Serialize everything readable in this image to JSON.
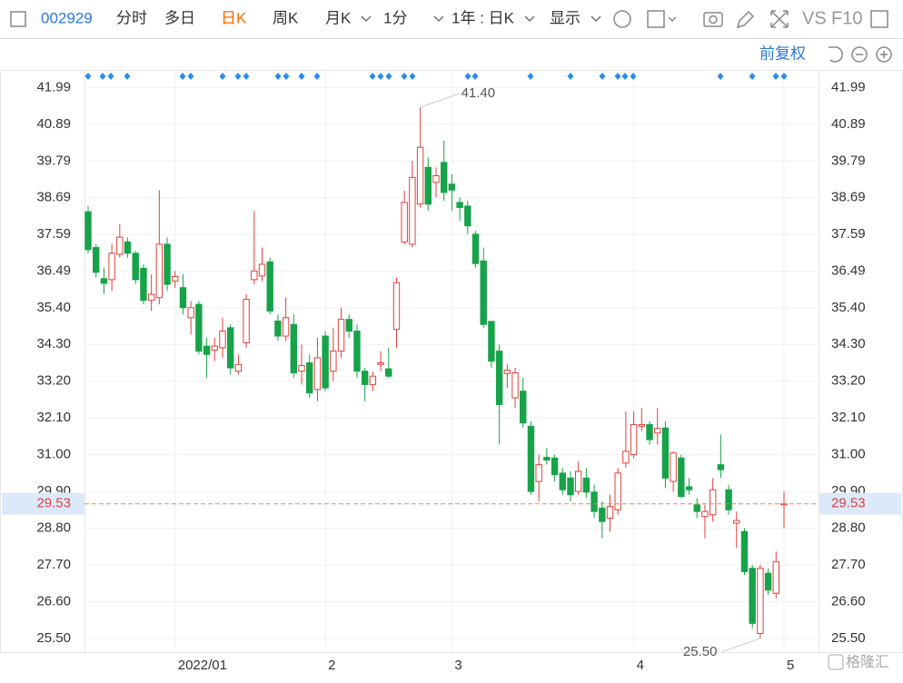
{
  "toolbar": {
    "code": "002929",
    "tabs": [
      "分时",
      "多日",
      "日K",
      "周K",
      "月K",
      "1分",
      "1年 : 日K",
      "显示"
    ],
    "active_tab": 2,
    "tools": [
      "VS",
      "F10"
    ],
    "adjust": "前复权",
    "watermark": "格隆汇"
  },
  "chart_data": {
    "type": "candlestick",
    "categories": [
      null,
      null,
      null,
      null,
      null,
      null,
      null,
      null,
      null,
      null,
      null,
      "2022/01",
      null,
      null,
      null,
      null,
      null,
      null,
      null,
      null,
      null,
      null,
      null,
      null,
      null,
      null,
      null,
      null,
      null,
      null,
      "2",
      null,
      null,
      null,
      null,
      null,
      null,
      null,
      null,
      null,
      null,
      null,
      null,
      null,
      null,
      null,
      "3",
      null,
      null,
      null,
      null,
      null,
      null,
      null,
      null,
      null,
      null,
      null,
      null,
      null,
      null,
      null,
      null,
      null,
      null,
      null,
      null,
      null,
      null,
      "4",
      null,
      null,
      null,
      null,
      null,
      null,
      null,
      null,
      null,
      null,
      null,
      null,
      null,
      null,
      null,
      null,
      null,
      null,
      "5"
    ],
    "open": [
      38.27,
      37.2,
      36.27,
      36.24,
      37.0,
      37.37,
      37.03,
      36.58,
      35.62,
      35.7,
      37.3,
      36.2,
      36.0,
      35.1,
      35.5,
      34.25,
      34.13,
      34.2,
      34.8,
      33.5,
      34.35,
      36.24,
      36.35,
      36.77,
      35.0,
      34.55,
      34.9,
      33.5,
      33.75,
      32.95,
      34.55,
      33.5,
      34.1,
      35.05,
      34.7,
      33.5,
      33.1,
      33.7,
      33.57,
      34.75,
      37.37,
      37.3,
      38.5,
      39.6,
      39.15,
      39.75,
      39.1,
      38.55,
      38.44,
      37.6,
      36.8,
      34.99,
      34.1,
      33.43,
      32.7,
      32.9,
      31.85,
      30.2,
      30.92,
      30.9,
      30.45,
      30.3,
      29.9,
      30.3,
      29.88,
      29.4,
      29.1,
      29.35,
      30.75,
      31.0,
      31.85,
      31.9,
      31.65,
      31.8,
      30.2,
      30.9,
      30.04,
      29.5,
      29.15,
      29.2,
      30.7,
      29.95,
      28.95,
      28.7,
      27.6,
      25.65,
      27.45,
      26.85,
      29.5
    ],
    "high": [
      38.44,
      37.3,
      36.6,
      37.3,
      37.9,
      37.5,
      37.1,
      36.7,
      36.4,
      38.92,
      37.5,
      36.5,
      36.4,
      35.6,
      35.6,
      34.5,
      34.5,
      35.1,
      34.9,
      34.0,
      35.8,
      38.3,
      37.2,
      36.9,
      35.2,
      35.7,
      35.2,
      34.3,
      34.0,
      34.5,
      34.7,
      34.8,
      35.4,
      35.2,
      34.9,
      33.6,
      33.5,
      34.1,
      34.2,
      36.3,
      38.9,
      39.8,
      41.4,
      39.9,
      39.6,
      40.4,
      39.4,
      38.7,
      38.6,
      37.7,
      37.2,
      35.0,
      34.3,
      33.7,
      33.6,
      33.3,
      32.0,
      31.0,
      31.2,
      31.0,
      30.6,
      30.5,
      30.8,
      30.6,
      30.1,
      29.6,
      29.8,
      30.6,
      32.3,
      32.3,
      32.4,
      32.0,
      32.4,
      32.0,
      31.1,
      31.0,
      30.3,
      29.7,
      29.5,
      30.3,
      31.6,
      30.1,
      29.3,
      28.8,
      27.7,
      27.7,
      27.6,
      28.1,
      29.9
    ],
    "low": [
      37.03,
      36.3,
      35.8,
      35.9,
      36.9,
      36.9,
      36.1,
      35.5,
      35.3,
      35.5,
      35.9,
      36.0,
      35.2,
      34.6,
      34.0,
      33.3,
      33.8,
      33.9,
      33.4,
      33.4,
      34.2,
      36.1,
      36.2,
      35.2,
      34.4,
      34.4,
      33.3,
      33.1,
      32.7,
      32.6,
      32.9,
      33.2,
      33.9,
      34.5,
      33.3,
      32.6,
      32.9,
      33.5,
      33.3,
      34.2,
      37.3,
      37.2,
      38.4,
      38.3,
      38.7,
      38.6,
      38.3,
      38.0,
      37.6,
      36.6,
      34.8,
      33.6,
      31.3,
      33.0,
      32.4,
      31.8,
      29.8,
      29.6,
      30.7,
      30.2,
      29.8,
      29.6,
      29.8,
      29.7,
      29.1,
      28.5,
      28.7,
      29.2,
      30.6,
      30.9,
      31.7,
      31.3,
      31.3,
      30.0,
      29.9,
      29.7,
      29.8,
      29.1,
      28.5,
      29.0,
      30.3,
      29.2,
      28.2,
      27.4,
      25.8,
      25.5,
      26.8,
      26.7,
      28.8
    ],
    "close": [
      37.14,
      36.46,
      36.13,
      37.03,
      37.51,
      37.03,
      36.24,
      35.62,
      35.8,
      37.3,
      36.1,
      36.33,
      35.4,
      35.4,
      34.1,
      34.0,
      34.25,
      34.7,
      33.6,
      33.7,
      35.65,
      36.5,
      36.7,
      35.3,
      34.55,
      35.1,
      33.45,
      33.67,
      32.85,
      33.9,
      33.0,
      34.1,
      35.05,
      34.7,
      33.5,
      33.1,
      33.35,
      33.75,
      33.35,
      36.15,
      38.55,
      39.3,
      40.2,
      38.5,
      39.35,
      38.85,
      38.92,
      38.4,
      37.85,
      36.72,
      34.9,
      33.8,
      32.5,
      33.53,
      33.45,
      31.95,
      29.9,
      30.7,
      30.84,
      30.4,
      29.95,
      29.8,
      30.5,
      29.88,
      29.3,
      29.0,
      29.45,
      30.45,
      31.1,
      31.9,
      31.9,
      31.45,
      31.79,
      30.3,
      31.05,
      29.75,
      29.95,
      29.3,
      29.3,
      29.95,
      30.55,
      29.35,
      29.03,
      27.5,
      25.95,
      27.6,
      26.95,
      27.8,
      29.53
    ],
    "up_color": "#e0403c",
    "down_color": "#16a34a",
    "ylim": [
      25.09,
      42.49
    ],
    "yticks": [
      41.99,
      40.89,
      39.79,
      38.69,
      37.59,
      36.49,
      {
        "value": 35.4,
        "label": "35.40"
      },
      {
        "value": 34.3,
        "label": "34.30"
      },
      {
        "value": 33.2,
        "label": "33.20"
      },
      {
        "value": 32.1,
        "label": "32.10"
      },
      {
        "value": 31,
        "label": "31.00"
      },
      {
        "value": 29.9,
        "label": "29.90"
      },
      {
        "value": 28.8,
        "label": "28.80"
      },
      {
        "value": 27.7,
        "label": "27.70"
      },
      {
        "value": 26.6,
        "label": "26.60"
      },
      {
        "value": 25.5,
        "label": "25.50"
      }
    ],
    "grid": true,
    "last_price": 29.53,
    "last_price_color": "#f0883a",
    "annotations": [
      {
        "index": 42,
        "value": 41.4,
        "label": "41.40"
      },
      {
        "index": 85,
        "value": 25.5,
        "label": "25.50"
      }
    ]
  }
}
